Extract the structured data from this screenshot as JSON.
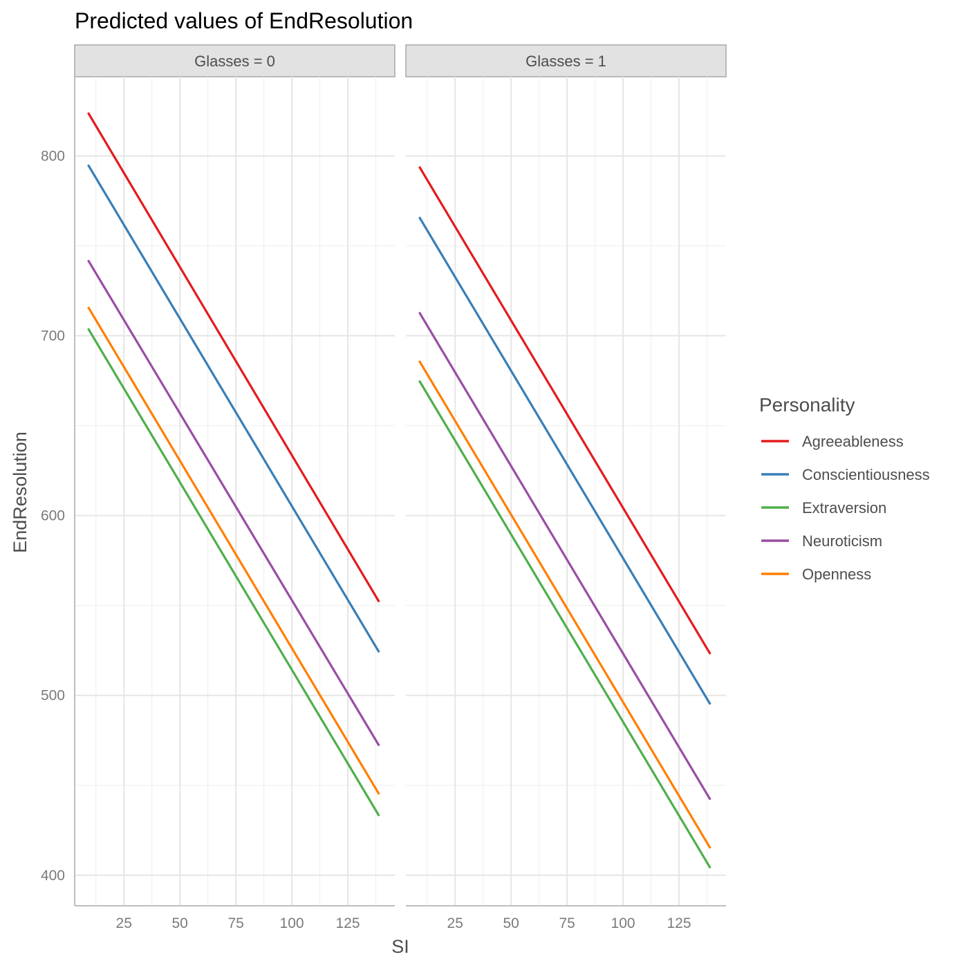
{
  "chart_data": {
    "type": "line",
    "title": "Predicted values of EndResolution",
    "xlabel": "SI",
    "ylabel": "EndResolution",
    "xlim": [
      3,
      146
    ],
    "ylim": [
      383,
      844
    ],
    "x_ticks": [
      25,
      50,
      75,
      100,
      125
    ],
    "y_ticks": [
      400,
      500,
      600,
      700,
      800
    ],
    "grid": true,
    "legend": {
      "title": "Personality",
      "placement": "right"
    },
    "series_meta": [
      {
        "name": "Agreeableness",
        "color": "#e41a1c"
      },
      {
        "name": "Conscientiousness",
        "color": "#377eb8"
      },
      {
        "name": "Extraversion",
        "color": "#4daf4a"
      },
      {
        "name": "Neuroticism",
        "color": "#984ea3"
      },
      {
        "name": "Openness",
        "color": "#ff7f00"
      }
    ],
    "facets": [
      {
        "label": "Glasses = 0",
        "series": [
          {
            "name": "Agreeableness",
            "x": [
              9,
              139
            ],
            "y": [
              824,
              552
            ]
          },
          {
            "name": "Conscientiousness",
            "x": [
              9,
              139
            ],
            "y": [
              795,
              524
            ]
          },
          {
            "name": "Extraversion",
            "x": [
              9,
              139
            ],
            "y": [
              704,
              433
            ]
          },
          {
            "name": "Neuroticism",
            "x": [
              9,
              139
            ],
            "y": [
              742,
              472
            ]
          },
          {
            "name": "Openness",
            "x": [
              9,
              139
            ],
            "y": [
              716,
              445
            ]
          }
        ]
      },
      {
        "label": "Glasses = 1",
        "series": [
          {
            "name": "Agreeableness",
            "x": [
              9,
              139
            ],
            "y": [
              794,
              523
            ]
          },
          {
            "name": "Conscientiousness",
            "x": [
              9,
              139
            ],
            "y": [
              766,
              495
            ]
          },
          {
            "name": "Extraversion",
            "x": [
              9,
              139
            ],
            "y": [
              675,
              404
            ]
          },
          {
            "name": "Neuroticism",
            "x": [
              9,
              139
            ],
            "y": [
              713,
              442
            ]
          },
          {
            "name": "Openness",
            "x": [
              9,
              139
            ],
            "y": [
              686,
              415
            ]
          }
        ]
      }
    ]
  }
}
